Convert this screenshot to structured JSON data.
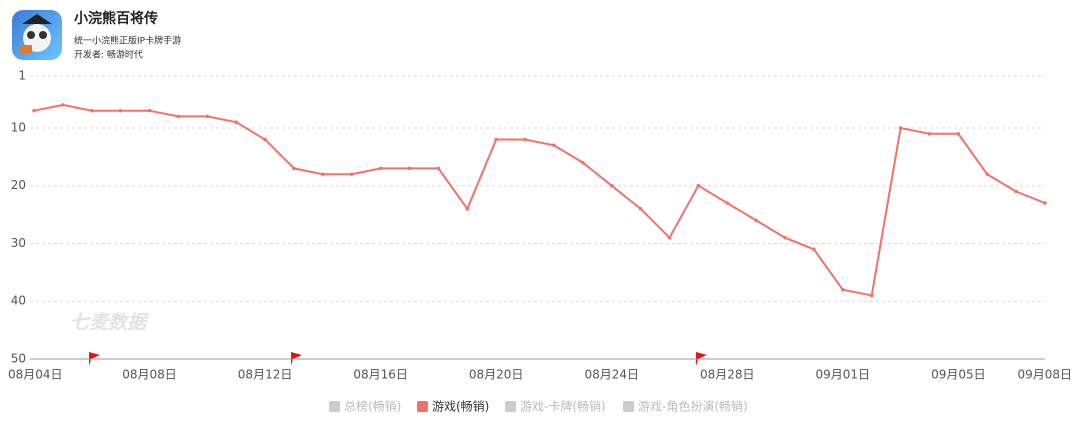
{
  "header": {
    "title": "小浣熊百将传",
    "subtitle": "统一小浣熊正版IP卡牌手游",
    "developer": "开发者: 畅游时代"
  },
  "chart_data": {
    "type": "line",
    "watermark": "七麦数据",
    "categories": [
      "08月04日",
      null,
      null,
      null,
      "08月08日",
      null,
      null,
      null,
      "08月12日",
      null,
      null,
      null,
      "08月16日",
      null,
      null,
      null,
      "08月20日",
      null,
      null,
      null,
      "08月24日",
      null,
      null,
      null,
      "08月28日",
      null,
      null,
      null,
      "09月01日",
      null,
      null,
      null,
      "09月05日",
      null,
      null,
      "09月08日"
    ],
    "series": [
      {
        "name": "总榜(畅销)",
        "color": "#cccccc",
        "visible": false
      },
      {
        "name": "游戏(畅销)",
        "color": "#f0736a",
        "visible": true,
        "values": [
          7,
          6,
          7,
          7,
          7,
          8,
          8,
          9,
          12,
          17,
          18,
          18,
          17,
          17,
          17,
          24,
          12,
          12,
          13,
          16,
          20,
          24,
          29,
          20,
          23,
          26,
          29,
          31,
          38,
          39,
          10,
          11,
          11,
          18,
          21,
          23
        ]
      },
      {
        "name": "游戏-卡牌(畅销)",
        "color": "#cccccc",
        "visible": false
      },
      {
        "name": "游戏-角色扮演(畅销)",
        "color": "#cccccc",
        "visible": false
      }
    ],
    "ylim": [
      1,
      50
    ],
    "y_inverted": true,
    "yticks": [
      1,
      10,
      20,
      30,
      40,
      50
    ],
    "grid": true
  }
}
